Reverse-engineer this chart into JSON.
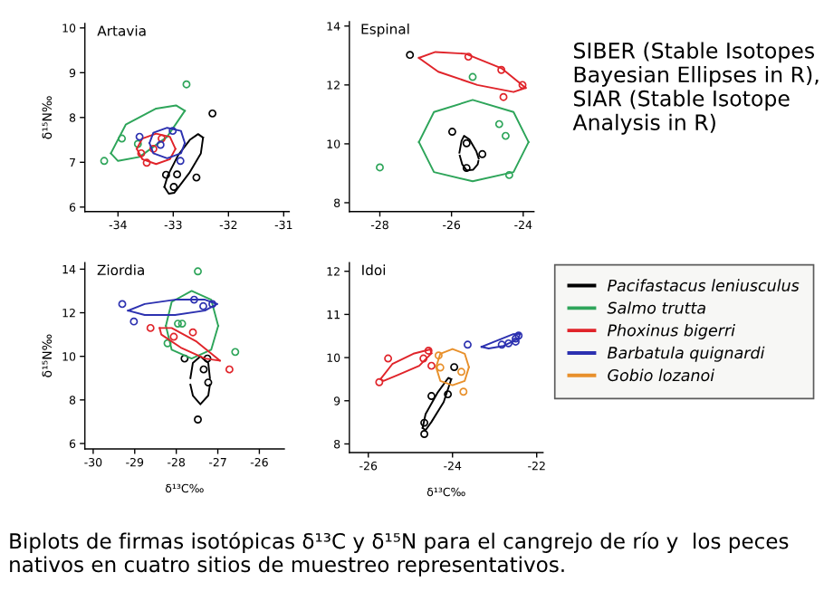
{
  "chart_data": [
    {
      "type": "scatter",
      "title": "Artavia",
      "ylabel": "δ¹⁵N‰",
      "xlim": [
        -34.6,
        -30.9
      ],
      "ylim": [
        5.9,
        10.1
      ],
      "xticks": [
        -34,
        -33,
        -32,
        -31
      ],
      "yticks": [
        6,
        7,
        8,
        9,
        10
      ],
      "marker": "circle",
      "line_style": "solid",
      "series": [
        {
          "type": "scatter",
          "color": "#000000",
          "x": [
            -32.29,
            -33.13,
            -32.93,
            -32.58,
            -32.99
          ],
          "values": [
            8.09,
            6.72,
            6.73,
            6.66,
            6.45
          ]
        },
        {
          "type": "line",
          "marker": "none",
          "color": "#000000",
          "x": [
            -33.16,
            -33.1,
            -32.91,
            -32.7,
            -32.55,
            -32.46
          ],
          "values": [
            6.45,
            6.7,
            7.16,
            7.5,
            7.63,
            7.55
          ]
        },
        {
          "type": "line",
          "marker": "none",
          "color": "#000000",
          "x": [
            -33.16,
            -33.08,
            -32.98,
            -32.71,
            -32.5,
            -32.46
          ],
          "values": [
            6.45,
            6.3,
            6.32,
            6.76,
            7.2,
            7.55
          ]
        },
        {
          "type": "scatter",
          "color": "#2ea55a",
          "x": [
            -34.25,
            -33.93,
            -33.64,
            -32.76
          ],
          "values": [
            7.03,
            7.53,
            7.41,
            8.74
          ]
        },
        {
          "type": "line",
          "marker": "none",
          "color": "#2ea55a",
          "x": [
            -34.13,
            -33.86,
            -33.31,
            -32.95,
            -32.79
          ],
          "values": [
            7.2,
            7.84,
            8.2,
            8.27,
            8.15
          ]
        },
        {
          "type": "line",
          "marker": "none",
          "color": "#2ea55a",
          "x": [
            -34.13,
            -34.0,
            -33.61,
            -33.11,
            -32.79
          ],
          "values": [
            7.2,
            7.03,
            7.12,
            7.57,
            8.15
          ]
        },
        {
          "type": "scatter",
          "color": "#e0242a",
          "x": [
            -33.48,
            -33.58,
            -33.21,
            -33.36
          ],
          "values": [
            6.99,
            7.2,
            7.53,
            7.3
          ]
        },
        {
          "type": "line",
          "marker": "none",
          "color": "#e0242a",
          "x": [
            -33.66,
            -33.56,
            -33.31,
            -33.06,
            -32.96
          ],
          "values": [
            7.3,
            7.53,
            7.64,
            7.57,
            7.3
          ]
        },
        {
          "type": "line",
          "marker": "none",
          "color": "#e0242a",
          "x": [
            -33.66,
            -33.56,
            -33.31,
            -33.06,
            -32.96
          ],
          "values": [
            7.3,
            7.07,
            6.96,
            7.07,
            7.3
          ]
        },
        {
          "type": "scatter",
          "color": "#2c31b0",
          "x": [
            -33.61,
            -33.01,
            -32.87,
            -33.23
          ],
          "values": [
            7.57,
            7.7,
            7.03,
            7.39
          ]
        },
        {
          "type": "line",
          "marker": "none",
          "color": "#2c31b0",
          "x": [
            -33.43,
            -33.36,
            -33.11,
            -32.86,
            -32.79
          ],
          "values": [
            7.43,
            7.66,
            7.77,
            7.7,
            7.43
          ]
        },
        {
          "type": "line",
          "marker": "none",
          "color": "#2c31b0",
          "x": [
            -33.43,
            -33.36,
            -33.11,
            -32.86,
            -32.79
          ],
          "values": [
            7.43,
            7.2,
            7.09,
            7.2,
            7.43
          ]
        }
      ]
    },
    {
      "type": "scatter",
      "title": "Espinal",
      "xlim": [
        -28.85,
        -23.7
      ],
      "ylim": [
        7.7,
        14.15
      ],
      "xticks": [
        -28,
        -26,
        -24
      ],
      "yticks": [
        8,
        10,
        12,
        14
      ],
      "marker": "circle",
      "line_style": "solid",
      "annotations": [
        "SIBER (Stable Isotopes Bayesian Ellipses in R), SIAR (Stable Isotope Analysis in R)"
      ],
      "series": [
        {
          "type": "scatter",
          "color": "#000000",
          "x": [
            -27.16,
            -25.98,
            -25.58,
            -25.14,
            -25.58
          ],
          "values": [
            13.02,
            10.41,
            10.02,
            9.65,
            9.18
          ]
        },
        {
          "type": "line",
          "marker": "none",
          "color": "#000000",
          "x": [
            -25.78,
            -25.72,
            -25.65,
            -25.5,
            -25.31,
            -25.24
          ],
          "values": [
            9.7,
            10.1,
            10.27,
            10.15,
            9.75,
            9.5
          ]
        },
        {
          "type": "line",
          "marker": "none",
          "color": "#000000",
          "x": [
            -25.77,
            -25.7,
            -25.58,
            -25.4,
            -25.27,
            -25.25
          ],
          "values": [
            9.6,
            9.3,
            9.1,
            9.12,
            9.3,
            9.42
          ]
        },
        {
          "type": "scatter",
          "color": "#2ea55a",
          "x": [
            -28.0,
            -25.41,
            -24.67,
            -24.49,
            -24.39
          ],
          "values": [
            9.2,
            12.27,
            10.67,
            10.27,
            8.94
          ]
        },
        {
          "type": "line",
          "marker": "none",
          "color": "#2ea55a",
          "x": [
            -26.91,
            -26.49,
            -25.41,
            -24.27,
            -23.85
          ],
          "values": [
            10.06,
            11.08,
            11.49,
            11.08,
            10.06
          ]
        },
        {
          "type": "line",
          "marker": "none",
          "color": "#2ea55a",
          "x": [
            -26.91,
            -26.49,
            -25.41,
            -24.27,
            -23.85
          ],
          "values": [
            10.06,
            9.04,
            8.73,
            9.04,
            10.06
          ]
        },
        {
          "type": "scatter",
          "color": "#e0242a",
          "x": [
            -25.53,
            -24.61,
            -24.02,
            -24.55
          ],
          "values": [
            12.96,
            12.51,
            12.0,
            11.59
          ]
        },
        {
          "type": "line",
          "marker": "none",
          "color": "#e0242a",
          "x": [
            -26.91,
            -26.45,
            -25.61,
            -24.61,
            -23.93
          ],
          "values": [
            12.92,
            13.12,
            13.06,
            12.57,
            11.9
          ]
        },
        {
          "type": "line",
          "marker": "none",
          "color": "#e0242a",
          "x": [
            -26.91,
            -26.37,
            -25.28,
            -24.27,
            -23.93
          ],
          "values": [
            12.92,
            12.45,
            12.0,
            11.76,
            11.9
          ]
        }
      ]
    },
    {
      "type": "scatter",
      "title": "Ziordia",
      "ylabel": "δ¹⁵N‰",
      "xlabel": "δ¹³C‰",
      "xlim": [
        -30.2,
        -25.4
      ],
      "ylim": [
        5.75,
        14.3
      ],
      "xticks": [
        -30,
        -29,
        -28,
        -27,
        -26
      ],
      "yticks": [
        6,
        8,
        10,
        12,
        14
      ],
      "marker": "circle",
      "line_style": "solid",
      "annotations": [
        "Biplots de firmas isotópicas δ¹³C y δ¹⁵N para el cangrejo de río y  los peces nativos en cuatro sitios de muestreo representativos."
      ],
      "series": [
        {
          "type": "scatter",
          "color": "#000000",
          "x": [
            -27.8,
            -27.25,
            -27.34,
            -27.23,
            -27.48
          ],
          "values": [
            9.9,
            9.9,
            9.4,
            8.8,
            7.1
          ]
        },
        {
          "type": "line",
          "marker": "none",
          "color": "#000000",
          "x": [
            -27.66,
            -27.6,
            -27.42,
            -27.23,
            -27.19
          ],
          "values": [
            9.0,
            9.7,
            10.0,
            9.7,
            9.0
          ]
        },
        {
          "type": "line",
          "marker": "none",
          "color": "#000000",
          "x": [
            -27.66,
            -27.6,
            -27.42,
            -27.23,
            -27.19
          ],
          "values": [
            8.7,
            8.2,
            7.8,
            8.2,
            8.7
          ]
        },
        {
          "type": "scatter",
          "color": "#2ea55a",
          "x": [
            -27.48,
            -27.96,
            -27.86,
            -28.21,
            -26.58
          ],
          "values": [
            13.9,
            11.5,
            11.5,
            10.6,
            10.2
          ]
        },
        {
          "type": "line",
          "marker": "none",
          "color": "#2ea55a",
          "x": [
            -28.25,
            -28.11,
            -27.63,
            -27.16,
            -26.99
          ],
          "values": [
            11.4,
            12.5,
            13.0,
            12.6,
            11.4
          ]
        },
        {
          "type": "line",
          "marker": "none",
          "color": "#2ea55a",
          "x": [
            -28.25,
            -28.11,
            -27.63,
            -27.16,
            -26.99
          ],
          "values": [
            11.4,
            10.3,
            9.9,
            10.3,
            11.4
          ]
        },
        {
          "type": "scatter",
          "color": "#e0242a",
          "x": [
            -28.62,
            -27.6,
            -26.72,
            -28.06
          ],
          "values": [
            11.3,
            11.1,
            9.4,
            10.9
          ]
        },
        {
          "type": "line",
          "marker": "none",
          "color": "#e0242a",
          "x": [
            -28.4,
            -28.11,
            -27.53,
            -26.95
          ],
          "values": [
            11.3,
            11.3,
            10.7,
            9.8
          ]
        },
        {
          "type": "line",
          "marker": "none",
          "color": "#e0242a",
          "x": [
            -28.4,
            -28.36,
            -27.89,
            -27.31,
            -26.95
          ],
          "values": [
            11.3,
            11.0,
            10.4,
            9.9,
            9.8
          ]
        },
        {
          "type": "scatter",
          "color": "#2c31b0",
          "x": [
            -29.3,
            -29.02,
            -27.57,
            -27.35,
            -27.13
          ],
          "values": [
            12.4,
            11.6,
            12.6,
            12.3,
            12.4
          ]
        },
        {
          "type": "line",
          "marker": "none",
          "color": "#2c31b0",
          "x": [
            -29.16,
            -28.76,
            -28.03,
            -27.31,
            -27.02
          ],
          "values": [
            12.1,
            12.4,
            12.6,
            12.6,
            12.4
          ]
        },
        {
          "type": "line",
          "marker": "none",
          "color": "#2c31b0",
          "x": [
            -29.16,
            -28.76,
            -28.03,
            -27.31,
            -27.02
          ],
          "values": [
            12.1,
            11.9,
            11.9,
            12.1,
            12.4
          ]
        }
      ]
    },
    {
      "type": "scatter",
      "title": "Idoi",
      "xlabel": "δ¹³C‰",
      "xlim": [
        -26.45,
        -21.85
      ],
      "ylim": [
        7.8,
        12.2
      ],
      "xticks": [
        -26,
        -24,
        -22
      ],
      "yticks": [
        8,
        9,
        10,
        11,
        12
      ],
      "marker": "circle",
      "line_style": "solid",
      "legend": "top right",
      "series": [
        {
          "type": "scatter",
          "color": "#000000",
          "x": [
            -24.67,
            -24.67,
            -24.5,
            -24.11,
            -23.96
          ],
          "values": [
            8.23,
            8.49,
            9.11,
            9.15,
            9.78
          ]
        },
        {
          "type": "line",
          "marker": "none",
          "name": "Pacifastacus leniusculus",
          "color": "#000000",
          "x": [
            -24.71,
            -24.64,
            -24.36,
            -24.1,
            -24.03
          ],
          "values": [
            8.37,
            8.69,
            9.18,
            9.53,
            9.5
          ]
        },
        {
          "type": "line",
          "marker": "none",
          "color": "#000000",
          "x": [
            -24.71,
            -24.64,
            -24.5,
            -24.21,
            -24.03
          ],
          "values": [
            8.37,
            8.32,
            8.51,
            8.97,
            9.5
          ]
        },
        {
          "type": "line",
          "marker": "none",
          "name": "Salmo trutta",
          "color": "#2ea55a"
        },
        {
          "type": "scatter",
          "color": "#e0242a",
          "x": [
            -25.74,
            -25.53,
            -24.69,
            -24.57,
            -24.5
          ],
          "values": [
            9.43,
            9.98,
            9.98,
            10.16,
            9.81
          ]
        },
        {
          "type": "line",
          "marker": "none",
          "name": "Phoxinus bigerri",
          "color": "#e0242a",
          "x": [
            -25.71,
            -25.43,
            -24.93,
            -24.53,
            -24.5
          ],
          "values": [
            9.5,
            9.85,
            10.09,
            10.19,
            10.1
          ]
        },
        {
          "type": "line",
          "marker": "none",
          "color": "#e0242a",
          "x": [
            -25.71,
            -25.64,
            -25.29,
            -24.79,
            -24.5
          ],
          "values": [
            9.5,
            9.46,
            9.6,
            9.81,
            10.1
          ]
        },
        {
          "type": "scatter",
          "color": "#2c31b0",
          "x": [
            -23.64,
            -22.83,
            -22.67,
            -22.5,
            -22.43,
            -22.5
          ],
          "values": [
            10.3,
            10.3,
            10.33,
            10.44,
            10.51,
            10.37
          ]
        },
        {
          "type": "line",
          "marker": "none",
          "name": "Barbatula quignardi",
          "color": "#2c31b0",
          "x": [
            -23.31,
            -23.0,
            -22.57,
            -22.4
          ],
          "values": [
            10.25,
            10.37,
            10.54,
            10.55
          ]
        },
        {
          "type": "line",
          "marker": "none",
          "color": "#2c31b0",
          "x": [
            -23.31,
            -23.14,
            -22.79,
            -22.43,
            -22.4
          ],
          "values": [
            10.25,
            10.21,
            10.27,
            10.44,
            10.55
          ]
        },
        {
          "type": "scatter",
          "color": "#e8902b",
          "x": [
            -24.33,
            -24.29,
            -23.79,
            -23.74
          ],
          "values": [
            10.05,
            9.77,
            9.67,
            9.21
          ]
        },
        {
          "type": "line",
          "marker": "none",
          "name": "Gobio lozanoi",
          "color": "#e8902b",
          "x": [
            -24.39,
            -24.29,
            -24.0,
            -23.71,
            -23.61
          ],
          "values": [
            9.78,
            10.09,
            10.2,
            10.09,
            9.78
          ]
        },
        {
          "type": "line",
          "marker": "none",
          "color": "#e8902b",
          "x": [
            -24.39,
            -24.29,
            -24.0,
            -23.71,
            -23.61
          ],
          "values": [
            9.78,
            9.46,
            9.36,
            9.46,
            9.78
          ]
        }
      ]
    }
  ]
}
